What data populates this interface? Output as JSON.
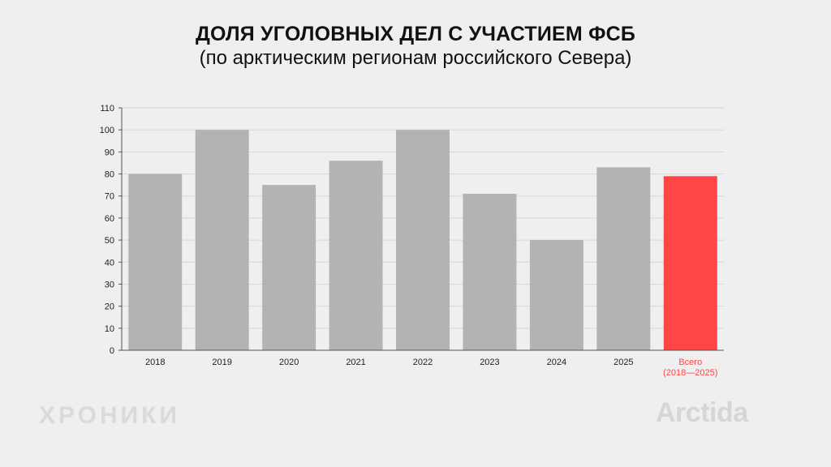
{
  "chart_data": {
    "type": "bar",
    "title": "ДОЛЯ УГОЛОВНЫХ ДЕЛ С УЧАСТИЕМ ФСБ",
    "subtitle": "(по арктическим регионам российского Севера)",
    "categories": [
      "2018",
      "2019",
      "2020",
      "2021",
      "2022",
      "2023",
      "2024",
      "2025",
      "Всего (2018—2025)"
    ],
    "values": [
      80,
      100,
      75,
      86,
      100,
      71,
      50,
      83,
      79
    ],
    "ylim": [
      0,
      110
    ],
    "yticks": [
      0,
      10,
      20,
      30,
      40,
      50,
      60,
      70,
      80,
      90,
      100,
      110
    ],
    "grid": true,
    "colors": {
      "bar": "#b3b3b3",
      "highlight": "#ff4545",
      "highlight_label": "#ff4545",
      "grid": "#d6d6d6",
      "axis": "#555555"
    },
    "highlight_index": 8
  },
  "branding": {
    "left": "ХРОНИКИ",
    "right": "Arctida"
  }
}
